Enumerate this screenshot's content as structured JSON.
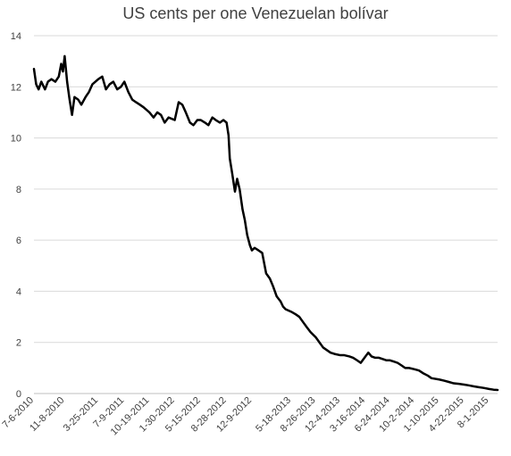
{
  "chart_data": {
    "type": "line",
    "title": "US cents per one Venezuelan bolívar",
    "xlabel": "",
    "ylabel": "",
    "ylim": [
      0,
      14
    ],
    "y_ticks": [
      0,
      2,
      4,
      6,
      8,
      10,
      12,
      14
    ],
    "x_ticks": [
      "7-6-2010",
      "11-8-2010",
      "3-25-2011",
      "7-9-2011",
      "10-19-2011",
      "1-30-2012",
      "5-15-2012",
      "8-28-2012",
      "12-9-2012",
      "5-18-2013",
      "8-26-2013",
      "12-4-2013",
      "3-16-2014",
      "6-24-2014",
      "10-2-2014",
      "1-10-2015",
      "4-22-2015",
      "8-1-2015"
    ],
    "grid": true,
    "legend": "none",
    "line_color": "#000000",
    "series": [
      {
        "x": [
          "7-6-2010",
          "7-15-2010",
          "7-25-2010",
          "8-5-2010",
          "8-20-2010",
          "9-1-2010",
          "9-15-2010",
          "10-1-2010",
          "10-15-2010",
          "10-25-2010",
          "11-1-2010",
          "11-8-2010",
          "11-12-2010",
          "11-18-2010",
          "11-28-2010",
          "12-8-2010",
          "12-18-2010",
          "1-2-2011",
          "1-15-2011",
          "2-1-2011",
          "2-15-2011",
          "3-1-2011",
          "3-25-2011",
          "4-10-2011",
          "4-25-2011",
          "5-10-2011",
          "5-25-2011",
          "6-10-2011",
          "6-25-2011",
          "7-9-2011",
          "7-25-2011",
          "8-10-2011",
          "8-25-2011",
          "9-10-2011",
          "9-25-2011",
          "10-19-2011",
          "11-5-2011",
          "11-20-2011",
          "12-5-2011",
          "12-20-2011",
          "1-5-2012",
          "1-30-2012",
          "2-15-2012",
          "3-1-2012",
          "3-15-2012",
          "4-1-2012",
          "4-15-2012",
          "5-1-2012",
          "5-15-2012",
          "6-1-2012",
          "6-15-2012",
          "7-1-2012",
          "7-15-2012",
          "8-1-2012",
          "8-15-2012",
          "8-28-2012",
          "9-5-2012",
          "9-10-2012",
          "9-20-2012",
          "10-1-2012",
          "10-10-2012",
          "10-20-2012",
          "11-1-2012",
          "11-10-2012",
          "11-20-2012",
          "12-1-2012",
          "12-9-2012",
          "12-20-2012",
          "1-5-2013",
          "1-20-2013",
          "2-5-2013",
          "2-20-2013",
          "3-5-2013",
          "3-20-2013",
          "4-5-2013",
          "4-15-2013",
          "4-25-2013",
          "5-18-2013",
          "6-5-2013",
          "6-20-2013",
          "7-5-2013",
          "7-20-2013",
          "8-5-2013",
          "8-26-2013",
          "9-10-2013",
          "9-25-2013",
          "10-10-2013",
          "10-25-2013",
          "11-10-2013",
          "12-4-2013",
          "12-20-2013",
          "1-10-2014",
          "1-25-2014",
          "2-10-2014",
          "2-25-2014",
          "3-16-2014",
          "3-28-2014",
          "4-10-2014",
          "4-25-2014",
          "5-10-2014",
          "5-25-2014",
          "6-10-2014",
          "6-24-2014",
          "7-10-2014",
          "7-25-2014",
          "8-10-2014",
          "8-25-2014",
          "9-10-2014",
          "10-2-2014",
          "10-20-2014",
          "11-5-2014",
          "11-25-2014",
          "12-10-2014",
          "1-10-2015",
          "2-1-2015",
          "2-20-2015",
          "3-10-2015",
          "3-31-2015",
          "4-22-2015",
          "5-10-2015",
          "6-1-2015",
          "6-20-2015",
          "7-10-2015",
          "8-1-2015",
          "8-20-2015",
          "9-5-2015"
        ],
        "values": [
          12.7,
          12.1,
          11.9,
          12.2,
          11.9,
          12.2,
          12.3,
          12.2,
          12.4,
          12.9,
          12.6,
          13.2,
          12.8,
          12.2,
          11.5,
          10.9,
          11.6,
          11.5,
          11.3,
          11.6,
          11.8,
          12.1,
          12.3,
          12.4,
          11.9,
          12.1,
          12.2,
          11.9,
          12.0,
          12.2,
          11.8,
          11.5,
          11.4,
          11.3,
          11.2,
          11.0,
          10.8,
          11.0,
          10.9,
          10.6,
          10.8,
          10.7,
          11.4,
          11.3,
          11.0,
          10.6,
          10.5,
          10.7,
          10.7,
          10.6,
          10.5,
          10.8,
          10.7,
          10.6,
          10.7,
          10.6,
          10.1,
          9.2,
          8.6,
          7.9,
          8.4,
          8.0,
          7.2,
          6.8,
          6.2,
          5.8,
          5.6,
          5.7,
          5.6,
          5.5,
          4.7,
          4.5,
          4.2,
          3.8,
          3.6,
          3.4,
          3.3,
          3.2,
          3.1,
          3.0,
          2.8,
          2.6,
          2.4,
          2.2,
          2.0,
          1.8,
          1.7,
          1.6,
          1.55,
          1.5,
          1.5,
          1.45,
          1.4,
          1.3,
          1.2,
          1.45,
          1.6,
          1.45,
          1.4,
          1.4,
          1.35,
          1.3,
          1.3,
          1.25,
          1.2,
          1.1,
          1.0,
          1.0,
          0.95,
          0.9,
          0.8,
          0.7,
          0.6,
          0.55,
          0.5,
          0.45,
          0.4,
          0.38,
          0.35,
          0.32,
          0.28,
          0.25,
          0.22,
          0.18,
          0.15,
          0.14
        ]
      }
    ]
  }
}
